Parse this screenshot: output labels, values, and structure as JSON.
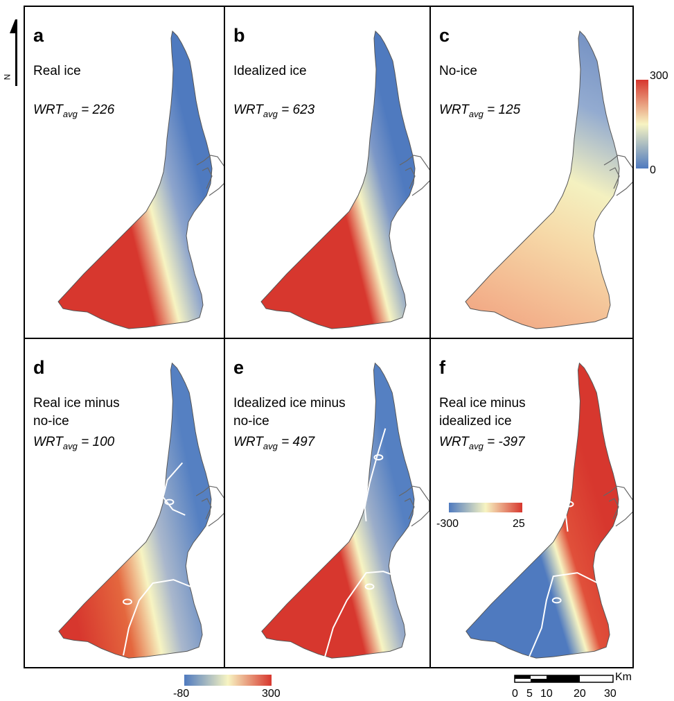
{
  "panels": [
    {
      "letter": "a",
      "title": "Real ice",
      "wrt_label": "WRT",
      "wrt_sub": "avg",
      "wrt_value": " = 226"
    },
    {
      "letter": "b",
      "title": "Idealized ice",
      "wrt_label": "WRT",
      "wrt_sub": "avg",
      "wrt_value": " = 623"
    },
    {
      "letter": "c",
      "title": "No-ice",
      "wrt_label": "WRT",
      "wrt_sub": "avg",
      "wrt_value": " = 125"
    },
    {
      "letter": "d",
      "title": "Real ice minus\nno-ice",
      "wrt_label": "WRT",
      "wrt_sub": "avg",
      "wrt_value": " = 100"
    },
    {
      "letter": "e",
      "title": "Idealized ice minus\nno-ice",
      "wrt_label": "WRT",
      "wrt_sub": "avg",
      "wrt_value": " = 497"
    },
    {
      "letter": "f",
      "title": "Real ice minus\nidealized ice",
      "wrt_label": "WRT",
      "wrt_sub": "avg",
      "wrt_value": " = -397"
    }
  ],
  "legend_top": {
    "min": "0",
    "max": "300"
  },
  "legend_bottom": {
    "min": "-80",
    "max": "300"
  },
  "legend_f": {
    "min": "-300",
    "max": "25"
  },
  "scalebar": {
    "unit": "Km",
    "ticks": [
      "0",
      "5",
      "10",
      "20",
      "30"
    ]
  },
  "north_label": "N",
  "colors": {
    "red": "#d7372e",
    "yellow": "#f7f4c2",
    "blue": "#4f7abf",
    "contour": "#ffffff",
    "outline": "#555555"
  }
}
